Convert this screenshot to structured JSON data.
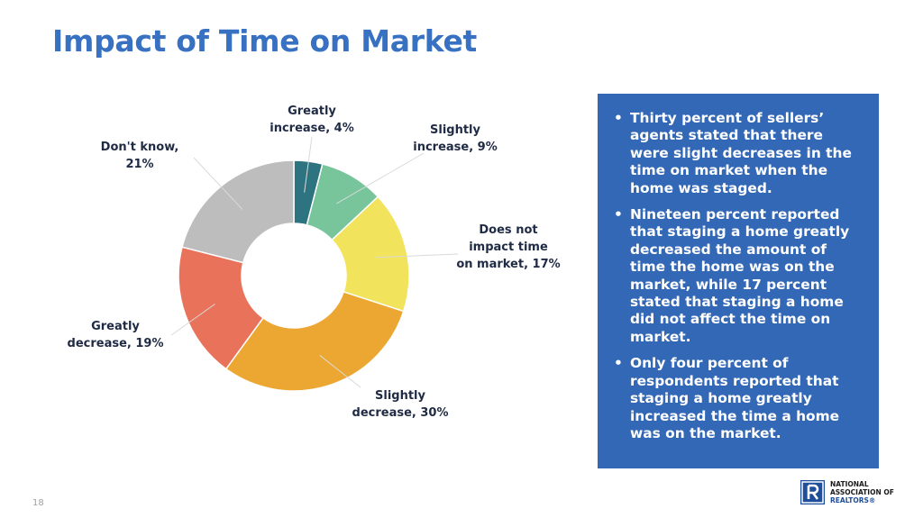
{
  "title": "Impact of Time on Market",
  "chart_data": {
    "type": "pie",
    "donut": true,
    "categories": [
      "Greatly increase",
      "Slightly increase",
      "Does not impact time on market",
      "Slightly decrease",
      "Greatly decrease",
      "Don't know"
    ],
    "values": [
      4,
      9,
      17,
      30,
      19,
      21
    ],
    "unit": "%",
    "colors": [
      "#2e7480",
      "#78c59c",
      "#f2e35c",
      "#eca733",
      "#e8735a",
      "#bdbdbd"
    ],
    "labels": [
      [
        "Greatly",
        "increase, 4%"
      ],
      [
        "Slightly",
        "increase, 9%"
      ],
      [
        "Does not",
        "impact time",
        "on market, 17%"
      ],
      [
        "Slightly",
        "decrease, 30%"
      ],
      [
        "Greatly",
        "decrease, 19%"
      ],
      [
        "Don't know,",
        "21%"
      ]
    ]
  },
  "bullets": [
    "Thirty percent of sellers’ agents stated that there were slight decreases in the time on market when the home was staged.",
    "Nineteen percent reported that staging a home greatly decreased the amount of time the home was on the market, while 17 percent stated that staging a home did not affect the time on market.",
    "Only four percent of respondents reported that staging a home greatly increased the time a home was on the market."
  ],
  "bullet_symbol": "•",
  "page_number": "18",
  "logo": {
    "line1": "NATIONAL",
    "line2": "ASSOCIATION OF",
    "line3": "REALTORS®",
    "icon": "realtor-r-logo-icon"
  }
}
